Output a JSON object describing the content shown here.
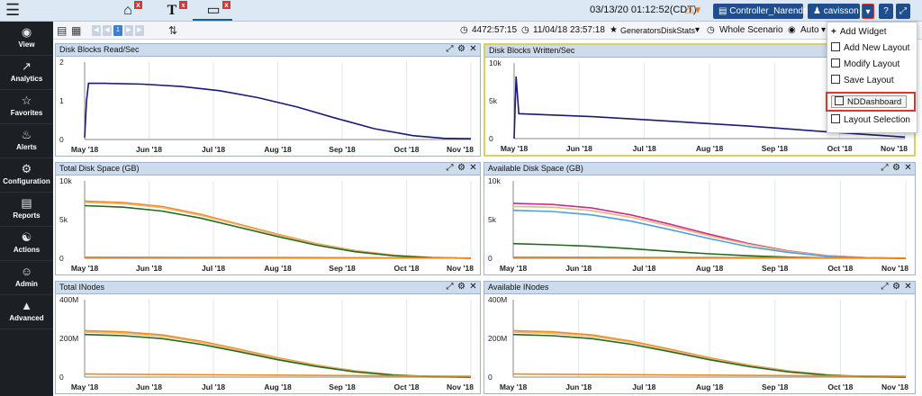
{
  "topbar": {
    "tabs": [
      {
        "name": "home",
        "icon": "home-icon"
      },
      {
        "name": "text",
        "label": "T"
      },
      {
        "name": "screen",
        "icon": "monitor-icon"
      }
    ],
    "datetime": "03/13/20 01:12:52(CDT)",
    "controller_label": "Controller_Narendra",
    "user_label": "cavisson"
  },
  "sidebar": {
    "items": [
      {
        "label": "View",
        "icon": "eye-icon"
      },
      {
        "label": "Analytics",
        "icon": "chart-line-icon"
      },
      {
        "label": "Favorites",
        "icon": "star-icon"
      },
      {
        "label": "Alerts",
        "icon": "bell-icon"
      },
      {
        "label": "Configuration",
        "icon": "gears-icon"
      },
      {
        "label": "Reports",
        "icon": "document-icon"
      },
      {
        "label": "Actions",
        "icon": "accessibility-icon"
      },
      {
        "label": "Admin",
        "icon": "user-icon"
      },
      {
        "label": "Advanced",
        "icon": "advanced-icon"
      }
    ]
  },
  "toolbar": {
    "page_number": "1",
    "elapsed": "4472:57:15",
    "start_date": "11/04/18 23:57:18",
    "favorite": "GeneratorsDiskStats",
    "scenario": "Whole Scenario",
    "view_mode": "Auto"
  },
  "dropdown": {
    "items": [
      {
        "label": "Add Widget",
        "icon": "plus-icon"
      },
      {
        "label": "Add New Layout",
        "icon": "grid-icon"
      },
      {
        "label": "Modify Layout",
        "icon": "layout-edit-icon"
      },
      {
        "label": "Save Layout",
        "icon": "save-layout-icon"
      },
      {
        "label": "NDDashboard",
        "icon": "copy-icon"
      },
      {
        "label": "Layout Selection",
        "icon": "layout-select-icon"
      }
    ]
  },
  "colors": {
    "navy": "#1a1a78",
    "orange": "#f08a1a",
    "dark_green": "#1f6b1f",
    "tan": "#e8b87a",
    "magenta": "#d02a8a",
    "blue": "#4aa0e0"
  },
  "chart_data": [
    {
      "type": "line",
      "title": "Disk Blocks Read/Sec",
      "x_ticks": [
        "May '18",
        "Jun '18",
        "Jul '18",
        "Aug '18",
        "Sep '18",
        "Oct '18",
        "Nov '18"
      ],
      "y_ticks": [
        "0",
        "1",
        "2"
      ],
      "ylim": [
        0,
        2
      ],
      "series": [
        {
          "color": "#1a1a78",
          "points": [
            [
              0.0,
              0.05
            ],
            [
              0.005,
              1.0
            ],
            [
              0.01,
              1.45
            ],
            [
              0.05,
              1.45
            ],
            [
              0.15,
              1.43
            ],
            [
              0.25,
              1.37
            ],
            [
              0.35,
              1.26
            ],
            [
              0.45,
              1.08
            ],
            [
              0.55,
              0.84
            ],
            [
              0.65,
              0.55
            ],
            [
              0.75,
              0.28
            ],
            [
              0.85,
              0.1
            ],
            [
              0.93,
              0.03
            ],
            [
              1.0,
              0.02
            ]
          ]
        }
      ]
    },
    {
      "type": "line",
      "title": "Disk Blocks Written/Sec",
      "x_ticks": [
        "May '18",
        "Jun '18",
        "Jul '18",
        "Aug '18",
        "Sep '18",
        "Oct '18",
        "Nov '18"
      ],
      "y_ticks": [
        "0",
        "5k",
        "10k"
      ],
      "ylim": [
        0,
        10000
      ],
      "series": [
        {
          "color": "#1a1a78",
          "points": [
            [
              0.0,
              0
            ],
            [
              0.005,
              8200
            ],
            [
              0.012,
              3300
            ],
            [
              0.2,
              2900
            ],
            [
              0.4,
              2300
            ],
            [
              0.6,
              1650
            ],
            [
              0.8,
              900
            ],
            [
              1.0,
              200
            ]
          ]
        }
      ]
    },
    {
      "type": "line",
      "title": "Total Disk Space (GB)",
      "x_ticks": [
        "May '18",
        "Jun '18",
        "Jul '18",
        "Aug '18",
        "Sep '18",
        "Oct '18",
        "Nov '18"
      ],
      "y_ticks": [
        "0",
        "5k",
        "10k"
      ],
      "ylim": [
        0,
        10000
      ],
      "series": [
        {
          "color": "#f08a1a",
          "points": [
            [
              0.0,
              7400
            ],
            [
              0.1,
              7200
            ],
            [
              0.2,
              6700
            ],
            [
              0.3,
              5700
            ],
            [
              0.4,
              4400
            ],
            [
              0.5,
              3100
            ],
            [
              0.6,
              1900
            ],
            [
              0.7,
              1000
            ],
            [
              0.8,
              400
            ],
            [
              0.9,
              120
            ],
            [
              1.0,
              0
            ]
          ]
        },
        {
          "color": "#e8b87a",
          "points": [
            [
              0.0,
              7200
            ],
            [
              0.1,
              7050
            ],
            [
              0.2,
              6550
            ],
            [
              0.3,
              5550
            ],
            [
              0.4,
              4300
            ],
            [
              0.5,
              3000
            ],
            [
              0.6,
              1850
            ],
            [
              0.7,
              950
            ],
            [
              0.8,
              370
            ],
            [
              0.9,
              100
            ],
            [
              1.0,
              0
            ]
          ]
        },
        {
          "color": "#1f6b1f",
          "points": [
            [
              0.0,
              6800
            ],
            [
              0.1,
              6600
            ],
            [
              0.2,
              6100
            ],
            [
              0.3,
              5200
            ],
            [
              0.4,
              4000
            ],
            [
              0.5,
              2800
            ],
            [
              0.6,
              1700
            ],
            [
              0.7,
              850
            ],
            [
              0.8,
              320
            ],
            [
              0.9,
              80
            ],
            [
              1.0,
              0
            ]
          ]
        },
        {
          "color": "#f08a1a",
          "points": [
            [
              0.0,
              150
            ],
            [
              0.5,
              100
            ],
            [
              1.0,
              40
            ]
          ]
        }
      ]
    },
    {
      "type": "line",
      "title": "Available Disk Space (GB)",
      "x_ticks": [
        "May '18",
        "Jun '18",
        "Jul '18",
        "Aug '18",
        "Sep '18",
        "Oct '18",
        "Nov '18"
      ],
      "y_ticks": [
        "0",
        "5k",
        "10k"
      ],
      "ylim": [
        0,
        10000
      ],
      "series": [
        {
          "color": "#d02a8a",
          "points": [
            [
              0.0,
              7100
            ],
            [
              0.1,
              6950
            ],
            [
              0.2,
              6500
            ],
            [
              0.3,
              5600
            ],
            [
              0.4,
              4400
            ],
            [
              0.5,
              3100
            ],
            [
              0.6,
              1900
            ],
            [
              0.7,
              950
            ],
            [
              0.8,
              350
            ],
            [
              0.9,
              80
            ],
            [
              1.0,
              0
            ]
          ]
        },
        {
          "color": "#e8b87a",
          "points": [
            [
              0.0,
              6700
            ],
            [
              0.1,
              6600
            ],
            [
              0.2,
              6150
            ],
            [
              0.3,
              5300
            ],
            [
              0.4,
              4150
            ],
            [
              0.5,
              2900
            ],
            [
              0.6,
              1800
            ],
            [
              0.7,
              900
            ],
            [
              0.8,
              330
            ],
            [
              0.9,
              70
            ],
            [
              1.0,
              0
            ]
          ]
        },
        {
          "color": "#4aa0e0",
          "points": [
            [
              0.0,
              6200
            ],
            [
              0.1,
              6050
            ],
            [
              0.2,
              5600
            ],
            [
              0.3,
              4800
            ],
            [
              0.4,
              3700
            ],
            [
              0.5,
              2550
            ],
            [
              0.6,
              1500
            ],
            [
              0.7,
              750
            ],
            [
              0.8,
              260
            ],
            [
              0.9,
              50
            ],
            [
              1.0,
              0
            ]
          ]
        },
        {
          "color": "#1f6b1f",
          "points": [
            [
              0.0,
              1900
            ],
            [
              0.1,
              1750
            ],
            [
              0.2,
              1550
            ],
            [
              0.3,
              1250
            ],
            [
              0.4,
              900
            ],
            [
              0.5,
              580
            ],
            [
              0.6,
              320
            ],
            [
              0.7,
              150
            ],
            [
              0.8,
              50
            ],
            [
              1.0,
              0
            ]
          ]
        },
        {
          "color": "#f08a1a",
          "points": [
            [
              0.0,
              150
            ],
            [
              0.5,
              100
            ],
            [
              1.0,
              40
            ]
          ]
        }
      ]
    },
    {
      "type": "line",
      "title": "Total INodes",
      "x_ticks": [
        "May '18",
        "Jun '18",
        "Jul '18",
        "Aug '18",
        "Sep '18",
        "Oct '18",
        "Nov '18"
      ],
      "y_ticks": [
        "0",
        "200M",
        "400M"
      ],
      "ylim": [
        0,
        400000000
      ],
      "series": [
        {
          "color": "#f08a1a",
          "points": [
            [
              0.0,
              240000000
            ],
            [
              0.1,
              234000000
            ],
            [
              0.2,
              218000000
            ],
            [
              0.3,
              186000000
            ],
            [
              0.4,
              144000000
            ],
            [
              0.5,
              100000000
            ],
            [
              0.6,
              62000000
            ],
            [
              0.7,
              32000000
            ],
            [
              0.8,
              12000000
            ],
            [
              0.9,
              3000000
            ],
            [
              1.0,
              0
            ]
          ]
        },
        {
          "color": "#e8b87a",
          "points": [
            [
              0.0,
              232000000
            ],
            [
              0.1,
              226000000
            ],
            [
              0.2,
              211000000
            ],
            [
              0.3,
              180000000
            ],
            [
              0.4,
              139000000
            ],
            [
              0.5,
              96000000
            ],
            [
              0.6,
              59000000
            ],
            [
              0.7,
              30000000
            ],
            [
              0.8,
              11000000
            ],
            [
              0.9,
              2500000
            ],
            [
              1.0,
              0
            ]
          ]
        },
        {
          "color": "#1f6b1f",
          "points": [
            [
              0.0,
              220000000
            ],
            [
              0.1,
              214000000
            ],
            [
              0.2,
              199000000
            ],
            [
              0.3,
              170000000
            ],
            [
              0.4,
              131000000
            ],
            [
              0.5,
              90000000
            ],
            [
              0.6,
              55000000
            ],
            [
              0.7,
              27000000
            ],
            [
              0.8,
              10000000
            ],
            [
              0.9,
              2000000
            ],
            [
              1.0,
              0
            ]
          ]
        },
        {
          "color": "#f08a1a",
          "points": [
            [
              0.0,
              16000000
            ],
            [
              0.5,
              10000000
            ],
            [
              1.0,
              4000000
            ]
          ]
        }
      ]
    },
    {
      "type": "line",
      "title": "Available INodes",
      "x_ticks": [
        "May '18",
        "Jun '18",
        "Jul '18",
        "Aug '18",
        "Sep '18",
        "Oct '18",
        "Nov '18"
      ],
      "y_ticks": [
        "0",
        "200M",
        "400M"
      ],
      "ylim": [
        0,
        400000000
      ],
      "series": [
        {
          "color": "#f08a1a",
          "points": [
            [
              0.0,
              240000000
            ],
            [
              0.1,
              234000000
            ],
            [
              0.2,
              218000000
            ],
            [
              0.3,
              186000000
            ],
            [
              0.4,
              144000000
            ],
            [
              0.5,
              100000000
            ],
            [
              0.6,
              62000000
            ],
            [
              0.7,
              32000000
            ],
            [
              0.8,
              12000000
            ],
            [
              0.9,
              3000000
            ],
            [
              1.0,
              0
            ]
          ]
        },
        {
          "color": "#e8b87a",
          "points": [
            [
              0.0,
              232000000
            ],
            [
              0.1,
              226000000
            ],
            [
              0.2,
              211000000
            ],
            [
              0.3,
              180000000
            ],
            [
              0.4,
              139000000
            ],
            [
              0.5,
              96000000
            ],
            [
              0.6,
              59000000
            ],
            [
              0.7,
              30000000
            ],
            [
              0.8,
              11000000
            ],
            [
              0.9,
              2500000
            ],
            [
              1.0,
              0
            ]
          ]
        },
        {
          "color": "#1f6b1f",
          "points": [
            [
              0.0,
              220000000
            ],
            [
              0.1,
              214000000
            ],
            [
              0.2,
              199000000
            ],
            [
              0.3,
              170000000
            ],
            [
              0.4,
              131000000
            ],
            [
              0.5,
              90000000
            ],
            [
              0.6,
              55000000
            ],
            [
              0.7,
              27000000
            ],
            [
              0.8,
              10000000
            ],
            [
              0.9,
              2000000
            ],
            [
              1.0,
              0
            ]
          ]
        },
        {
          "color": "#f08a1a",
          "points": [
            [
              0.0,
              16000000
            ],
            [
              0.5,
              10000000
            ],
            [
              1.0,
              4000000
            ]
          ]
        }
      ]
    }
  ]
}
